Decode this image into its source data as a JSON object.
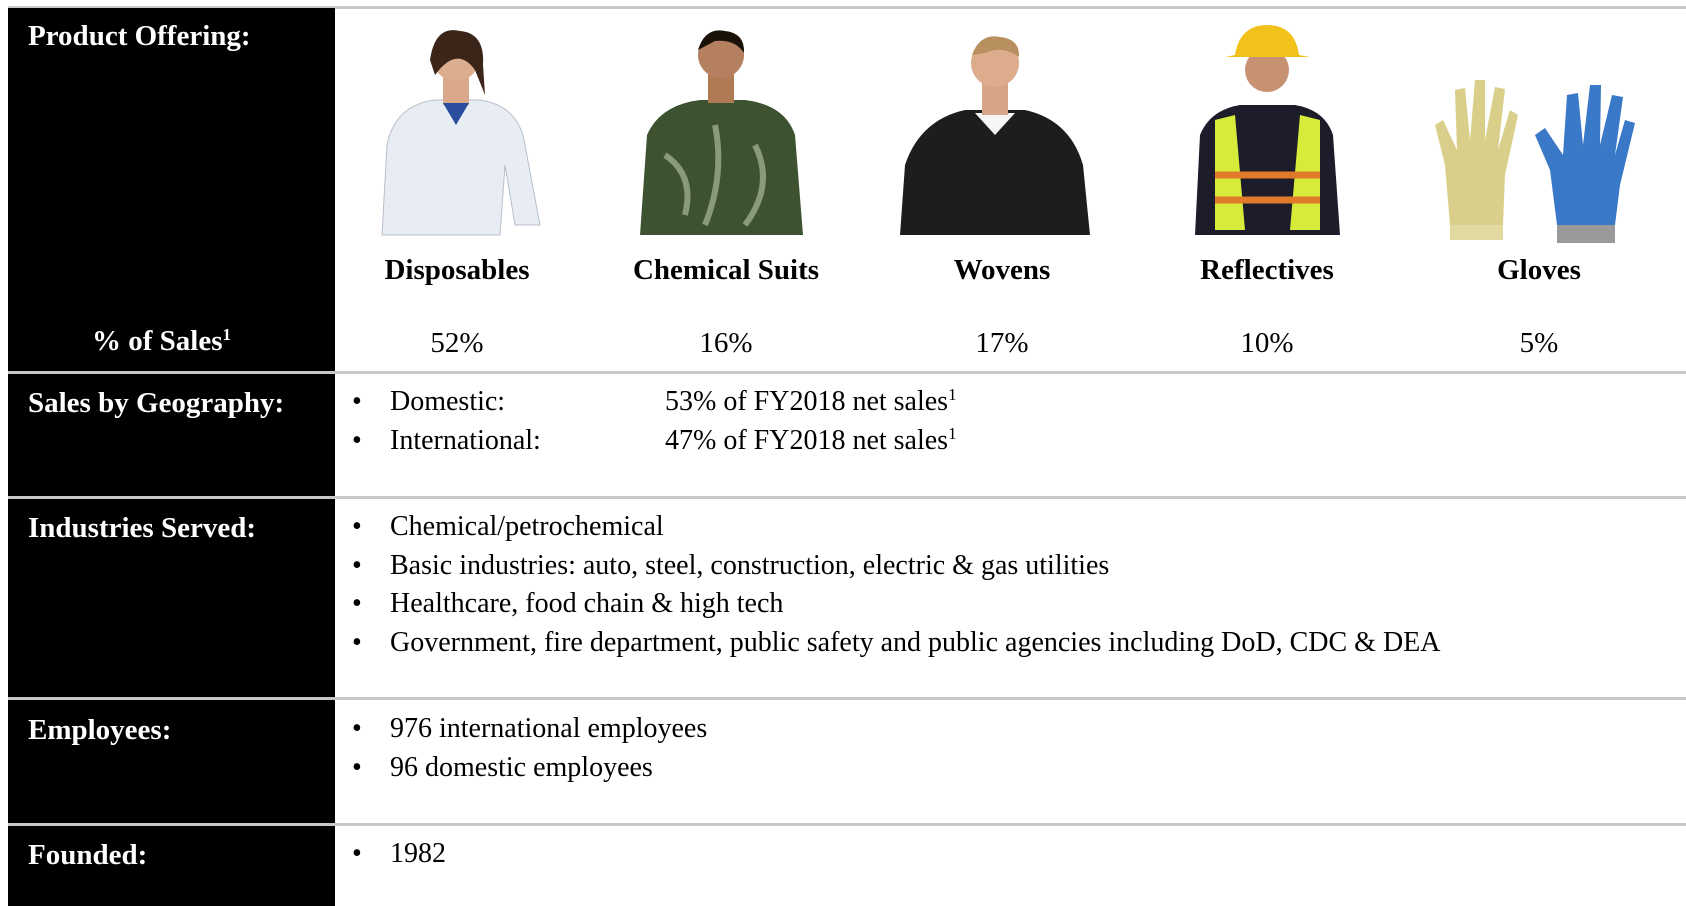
{
  "product_offering": {
    "label": "Product Offering:",
    "sales_label": "% of Sales",
    "sales_footnote": "1",
    "products": [
      {
        "name": "Disposables",
        "share": "52%"
      },
      {
        "name": "Chemical Suits",
        "share": "16%"
      },
      {
        "name": "Wovens",
        "share": "17%"
      },
      {
        "name": "Reflectives",
        "share": "10%"
      },
      {
        "name": "Gloves",
        "share": "5%"
      }
    ]
  },
  "geography": {
    "label": "Sales by Geography:",
    "items": [
      {
        "region": "Domestic:",
        "value": "53% of FY2018 net sales",
        "footnote": "1"
      },
      {
        "region": "International:",
        "value": "47% of FY2018 net sales",
        "footnote": "1"
      }
    ]
  },
  "industries": {
    "label": "Industries Served:",
    "items": [
      "Chemical/petrochemical",
      "Basic industries: auto, steel, construction, electric & gas utilities",
      "Healthcare, food chain & high tech",
      "Government, fire department, public safety and public agencies including DoD, CDC & DEA"
    ]
  },
  "employees": {
    "label": "Employees:",
    "items": [
      "976 international employees",
      "96 domestic employees"
    ]
  },
  "founded": {
    "label": "Founded:",
    "items": [
      "1982"
    ]
  }
}
